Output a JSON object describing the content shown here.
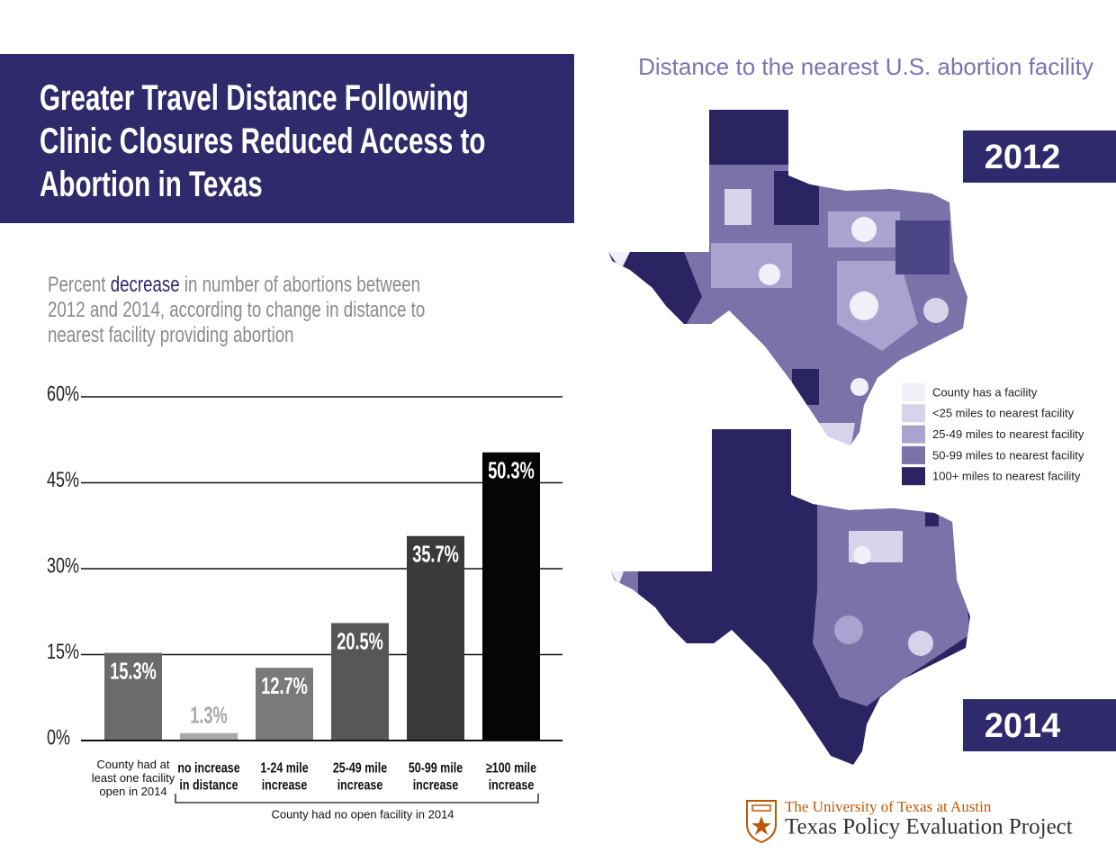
{
  "header": {
    "title": "Greater Travel Distance Following Clinic Closures Reduced Access to Abortion in Texas"
  },
  "chart_data": {
    "type": "bar",
    "subtitle_parts": [
      "Percent ",
      "decrease",
      " in number of abortions between 2012 and 2014, according to change in distance to nearest facility providing abortion"
    ],
    "categories": [
      "County had at\nleast one facility\nopen in 2014",
      "no increase\nin distance",
      "1-24 mile\nincrease",
      "25-49 mile\nincrease",
      "50-99 mile\nincrease",
      "≥100 mile\nincrease"
    ],
    "values": [
      15.3,
      1.3,
      12.7,
      20.5,
      35.7,
      50.3
    ],
    "value_labels": [
      "15.3%",
      "1.3%",
      "12.7%",
      "20.5%",
      "35.7%",
      "50.3%"
    ],
    "colors": [
      "#6b6b6b",
      "#a8a8a8",
      "#7a7a7a",
      "#575757",
      "#3a3a3a",
      "#050505"
    ],
    "ylim": [
      0,
      60
    ],
    "yticks": [
      {
        "value": 0,
        "label": "0%"
      },
      {
        "value": 15,
        "label": "15%"
      },
      {
        "value": 30,
        "label": "30%"
      },
      {
        "value": 45,
        "label": "45%"
      },
      {
        "value": 60,
        "label": "60%"
      }
    ],
    "grid": true,
    "group_annotation": "County had no open facility in 2014"
  },
  "map": {
    "title": "Distance to the nearest U.S. abortion facility",
    "years": [
      "2012",
      "2014"
    ],
    "legend": [
      {
        "label": "County has a facility",
        "color": "#f1eff8"
      },
      {
        "label": "<25 miles to nearest facility",
        "color": "#d6d3ea"
      },
      {
        "label": "25-49 miles to nearest facility",
        "color": "#a9a3cf"
      },
      {
        "label": "50-99 miles to nearest facility",
        "color": "#7a72a8"
      },
      {
        "label": "100+ miles to nearest facility",
        "color": "#2b2462"
      }
    ]
  },
  "footer": {
    "university": "The University of Texas at Austin",
    "project": "Texas Policy Evaluation Project"
  }
}
